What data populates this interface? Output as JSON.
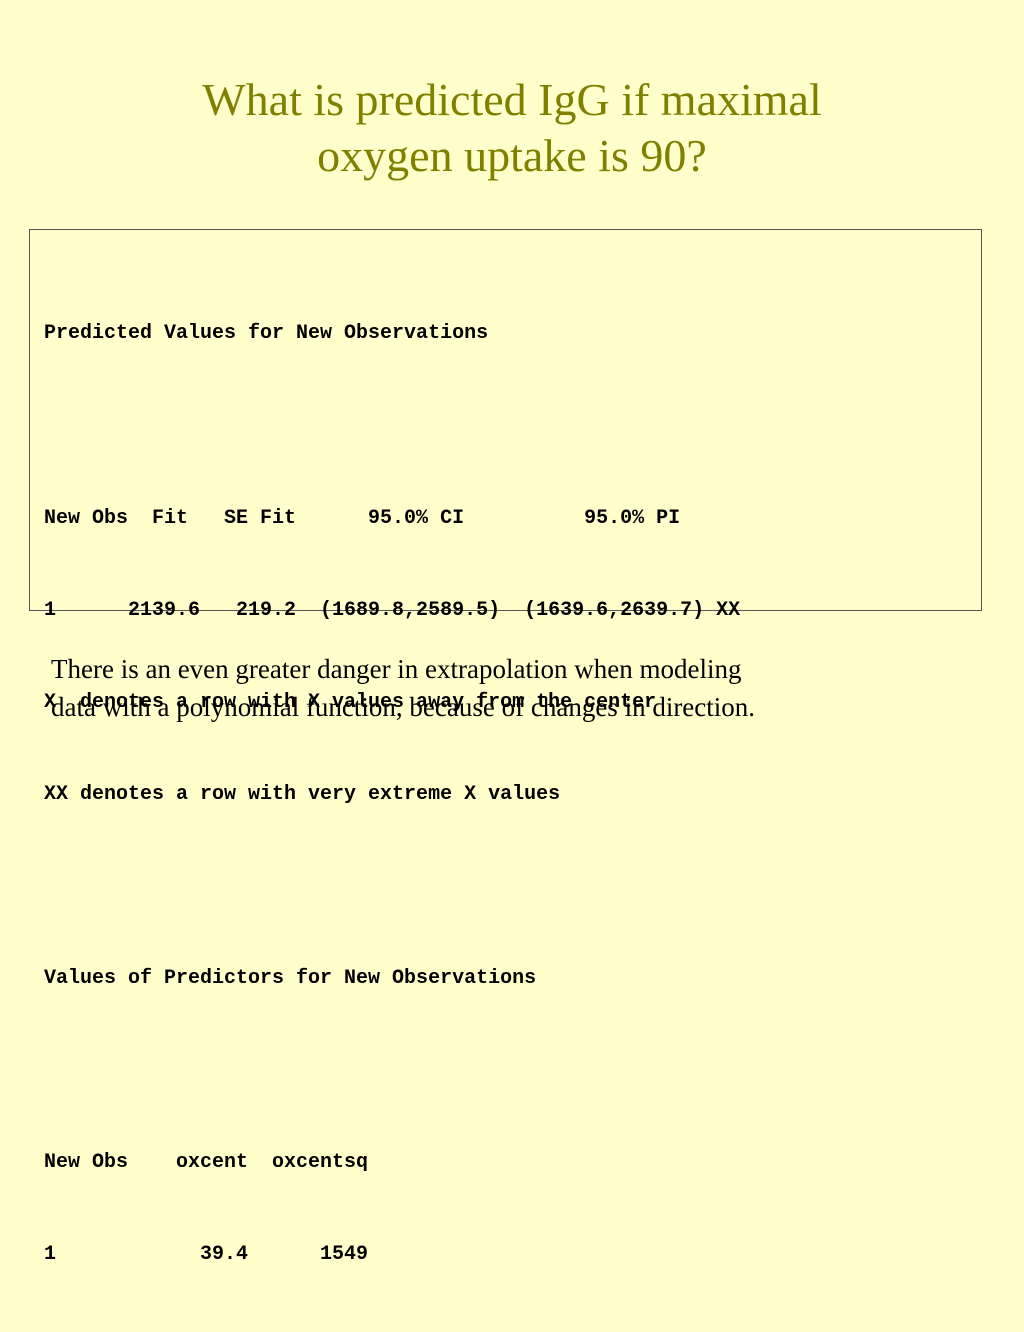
{
  "slide": {
    "title_lines": [
      "What is predicted IgG if maximal",
      "oxygen uptake is 90?"
    ],
    "output_lines": [
      "Predicted Values for New Observations",
      "",
      "New Obs  Fit   SE Fit      95.0% CI          95.0% PI",
      "1      2139.6   219.2  (1689.8,2589.5)  (1639.6,2639.7) XX",
      "X  denotes a row with X values away from the center",
      "XX denotes a row with very extreme X values",
      "",
      "Values of Predictors for New Observations",
      "",
      "New Obs    oxcent  oxcentsq",
      "1            39.4      1549"
    ],
    "caption_lines": [
      "There is an even greater danger in extrapolation when modeling",
      "data with a polynomial function, because of changes in direction."
    ],
    "colors": {
      "background": "#ffffcc",
      "title": "#808000",
      "text": "#000000",
      "box_border": "#555555"
    }
  }
}
